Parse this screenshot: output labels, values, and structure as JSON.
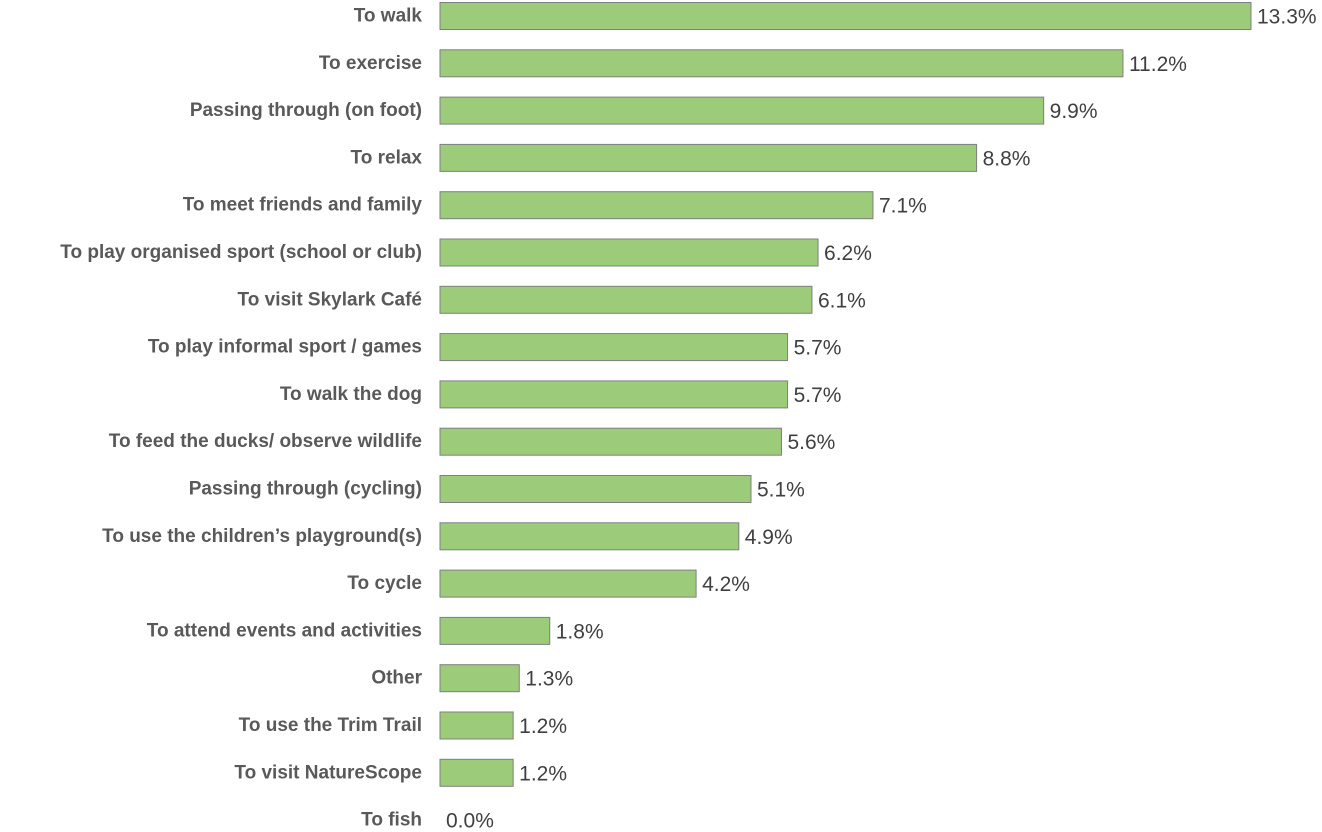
{
  "chart_data": {
    "type": "bar",
    "orientation": "horizontal",
    "title": "",
    "xlabel": "",
    "ylabel": "",
    "categories": [
      "To walk",
      "To exercise",
      "Passing through (on foot)",
      "To relax",
      "To meet friends and family",
      "To play organised sport (school or club)",
      "To visit Skylark Café",
      "To play informal sport / games",
      "To walk the dog",
      "To feed the ducks/ observe wildlife",
      "Passing through (cycling)",
      "To use the children’s playground(s)",
      "To cycle",
      "To attend events and activities",
      "Other",
      "To use the Trim Trail",
      "To visit NatureScope",
      "To fish"
    ],
    "values": [
      13.3,
      11.2,
      9.9,
      8.8,
      7.1,
      6.2,
      6.1,
      5.7,
      5.7,
      5.6,
      5.1,
      4.9,
      4.2,
      1.8,
      1.3,
      1.2,
      1.2,
      0.0
    ],
    "value_labels": [
      "13.3%",
      "11.2%",
      "9.9%",
      "8.8%",
      "7.1%",
      "6.2%",
      "6.1%",
      "5.7%",
      "5.7%",
      "5.6%",
      "5.1%",
      "4.9%",
      "4.2%",
      "1.8%",
      "1.3%",
      "1.2%",
      "1.2%",
      "0.0%"
    ],
    "xlim": [
      0,
      13.3
    ],
    "grid": false,
    "legend": "none",
    "bar_color": "#9ccc7a",
    "bar_border_color": "#7f7f7f"
  }
}
